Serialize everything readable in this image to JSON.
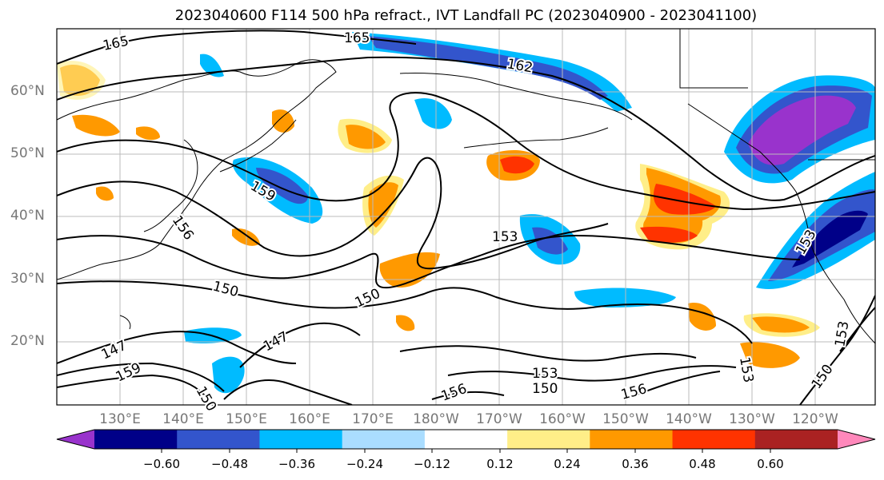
{
  "title": "2023040600 F114 500 hPa refract., IVT Landfall PC (2023040900 - 2023041100)",
  "lat_labels": [
    "60°N",
    "50°N",
    "40°N",
    "30°N",
    "20°N"
  ],
  "lon_labels": [
    "130°E",
    "140°E",
    "150°E",
    "160°E",
    "170°E",
    "180°W",
    "170°W",
    "160°W",
    "150°W",
    "140°W",
    "130°W",
    "120°W"
  ],
  "contour_labels": [
    "165",
    "165",
    "162",
    "159",
    "156",
    "153",
    "150",
    "150",
    "147",
    "147",
    "159",
    "153",
    "153",
    "150",
    "156",
    "156",
    "153",
    "150",
    "150",
    "153"
  ],
  "colorbar": {
    "ticks": [
      "−0.60",
      "−0.48",
      "−0.36",
      "−0.24",
      "−0.12",
      "0.12",
      "0.24",
      "0.36",
      "0.48",
      "0.60"
    ],
    "colors": [
      "#9933cc",
      "#000088",
      "#3355cc",
      "#00bbff",
      "#aaddff",
      "#ffffff",
      "#ffee88",
      "#ff9900",
      "#ff3300",
      "#aa2222",
      "#ff88bb"
    ]
  }
}
